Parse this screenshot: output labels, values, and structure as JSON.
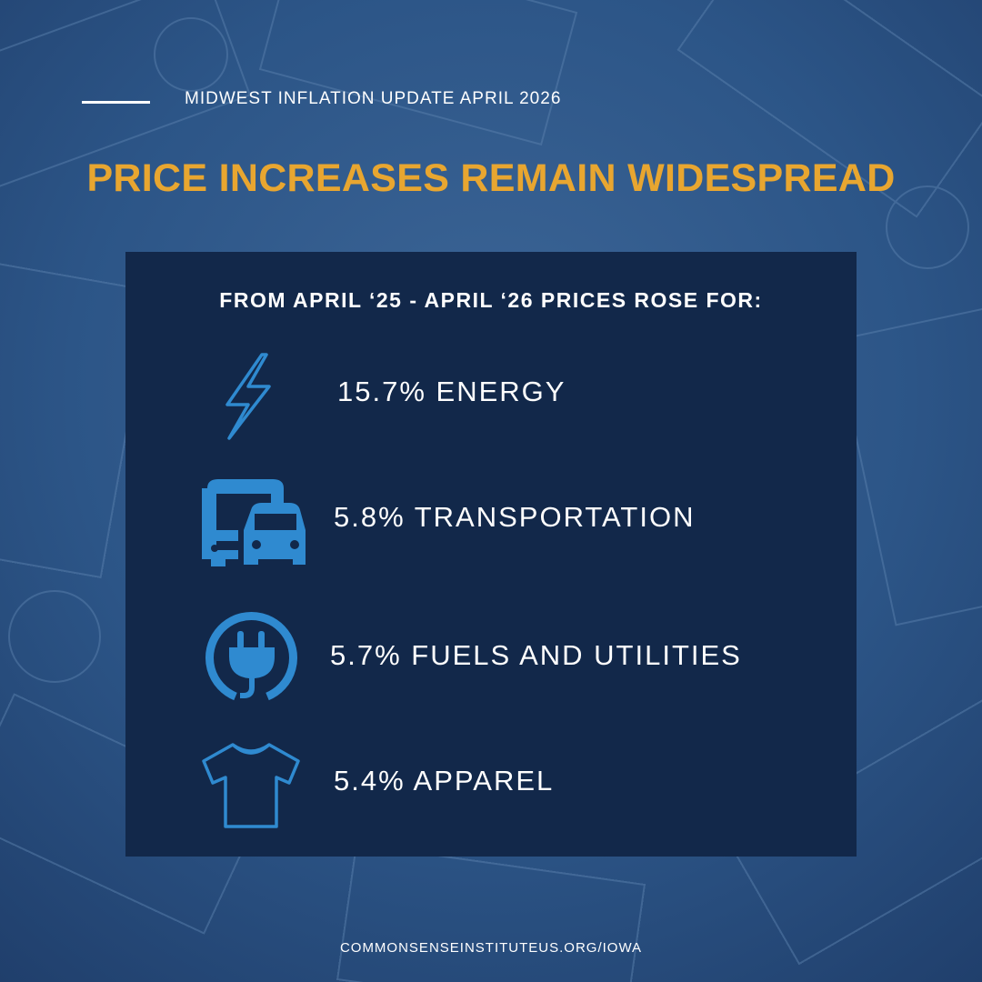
{
  "header": {
    "kicker": "MIDWEST INFLATION UPDATE APRIL 2026",
    "title": "PRICE INCREASES REMAIN WIDESPREAD"
  },
  "panel": {
    "heading": "FROM APRIL ‘25 - APRIL ‘26 PRICES ROSE FOR:",
    "items": [
      "15.7% ENERGY",
      "5.8% TRANSPORTATION",
      "5.7% FUELS AND UTILITIES",
      "5.4% APPAREL"
    ]
  },
  "footer": {
    "url": "COMMONSENSEINSTITUTEUS.ORG/IOWA"
  }
}
